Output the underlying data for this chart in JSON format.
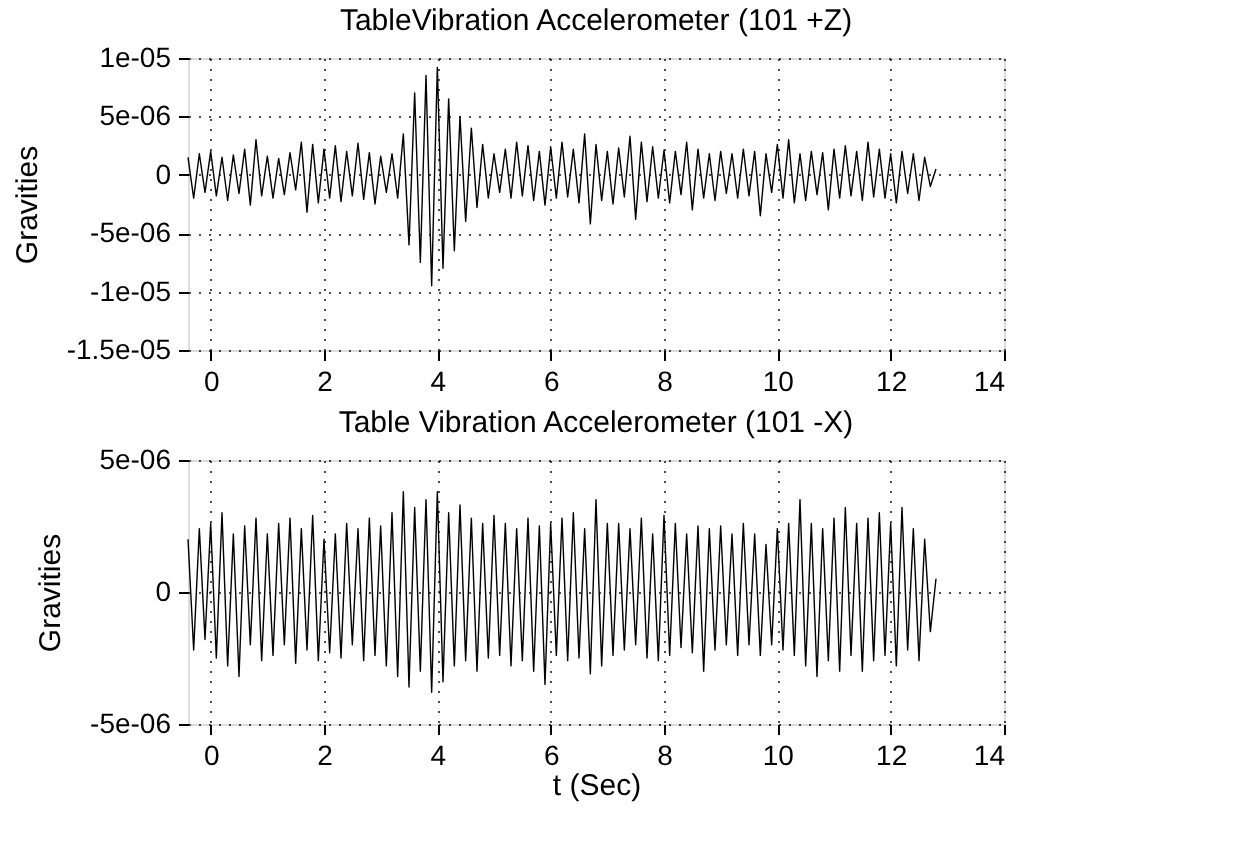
{
  "chart_data": [
    {
      "type": "line",
      "title": "TableVibration Accelerometer (101 +Z)",
      "ylabel": "Gravities",
      "color": "#000000",
      "grid": true,
      "xlim": [
        -0.4,
        14
      ],
      "xticks": [
        0,
        2,
        4,
        6,
        8,
        10,
        12,
        14
      ],
      "ylim": [
        -1.5e-05,
        1e-05
      ],
      "yticks": [
        {
          "value": -1.5e-05,
          "label": "-1.5e-05"
        },
        {
          "value": -1e-05,
          "label": "-1e-05"
        },
        {
          "value": -5e-06,
          "label": "-5e-06"
        },
        0,
        {
          "value": 5e-06,
          "label": "5e-06"
        },
        {
          "value": 1e-05,
          "label": "1e-05"
        }
      ],
      "x": [
        -0.4,
        -0.3,
        -0.2,
        -0.1,
        0.0,
        0.1,
        0.2,
        0.3,
        0.4,
        0.5,
        0.6,
        0.7,
        0.8,
        0.9,
        1.0,
        1.1,
        1.2,
        1.3,
        1.4,
        1.5,
        1.6,
        1.7,
        1.8,
        1.9,
        2.0,
        2.1,
        2.2,
        2.3,
        2.4,
        2.5,
        2.6,
        2.7,
        2.8,
        2.9,
        3.0,
        3.1,
        3.2,
        3.3,
        3.4,
        3.5,
        3.6,
        3.7,
        3.8,
        3.9,
        4.0,
        4.1,
        4.2,
        4.3,
        4.4,
        4.5,
        4.6,
        4.7,
        4.8,
        4.9,
        5.0,
        5.1,
        5.2,
        5.3,
        5.4,
        5.5,
        5.6,
        5.7,
        5.8,
        5.9,
        6.0,
        6.1,
        6.2,
        6.3,
        6.4,
        6.5,
        6.6,
        6.7,
        6.8,
        6.9,
        7.0,
        7.1,
        7.2,
        7.3,
        7.4,
        7.5,
        7.6,
        7.7,
        7.8,
        7.9,
        8.0,
        8.1,
        8.2,
        8.3,
        8.4,
        8.5,
        8.6,
        8.7,
        8.8,
        8.9,
        9.0,
        9.1,
        9.2,
        9.3,
        9.4,
        9.5,
        9.6,
        9.7,
        9.8,
        9.9,
        10.0,
        10.1,
        10.2,
        10.3,
        10.4,
        10.5,
        10.6,
        10.7,
        10.8,
        10.9,
        11.0,
        11.1,
        11.2,
        11.3,
        11.4,
        11.5,
        11.6,
        11.7,
        11.8,
        11.9,
        12.0,
        12.1,
        12.2,
        12.3,
        12.4,
        12.5,
        12.6,
        12.7,
        12.8
      ],
      "values": [
        1.5e-06,
        -2e-06,
        1.8e-06,
        -1.5e-06,
        2e-06,
        -1.8e-06,
        1.5e-06,
        -2.2e-06,
        1.7e-06,
        -1.6e-06,
        2.2e-06,
        -2.6e-06,
        3e-06,
        -1.8e-06,
        1.6e-06,
        -2e-06,
        1.4e-06,
        -1.7e-06,
        1.9e-06,
        -1.3e-06,
        2.8e-06,
        -3.2e-06,
        2.6e-06,
        -2.4e-06,
        2.2e-06,
        -2e-06,
        2.5e-06,
        -2.3e-06,
        2e-06,
        -1.8e-06,
        2.7e-06,
        -2.1e-06,
        1.9e-06,
        -2.5e-06,
        1.6e-06,
        -1.5e-06,
        1.8e-06,
        -2e-06,
        3.5e-06,
        -6e-06,
        7e-06,
        -7.5e-06,
        8.5e-06,
        -9.5e-06,
        9.2e-06,
        -8e-06,
        6.5e-06,
        -6.5e-06,
        5e-06,
        -4e-06,
        4e-06,
        -2.8e-06,
        2.6e-06,
        -2e-06,
        1.8e-06,
        -1.5e-06,
        2.2e-06,
        -2e-06,
        2.8e-06,
        -1.8e-06,
        2.5e-06,
        -2.2e-06,
        2e-06,
        -2.6e-06,
        2.4e-06,
        -2e-06,
        2.8e-06,
        -1.9e-06,
        2.2e-06,
        -2.4e-06,
        3.5e-06,
        -4.2e-06,
        2.6e-06,
        -2.2e-06,
        2e-06,
        -2.5e-06,
        2.3e-06,
        -1.9e-06,
        3.3e-06,
        -3.8e-06,
        2.8e-06,
        -2.3e-06,
        2.4e-06,
        -2e-06,
        2.1e-06,
        -2.4e-06,
        2e-06,
        -1.7e-06,
        2.8e-06,
        -3e-06,
        2.2e-06,
        -2e-06,
        1.8e-06,
        -2.2e-06,
        2e-06,
        -1.6e-06,
        1.8e-06,
        -2e-06,
        2.2e-06,
        -1.8e-06,
        2e-06,
        -3.5e-06,
        1.8e-06,
        -1.5e-06,
        2.6e-06,
        -2e-06,
        3e-06,
        -2.4e-06,
        1.8e-06,
        -2.2e-06,
        2e-06,
        -1.7e-06,
        1.9e-06,
        -3e-06,
        2.2e-06,
        -2e-06,
        2.5e-06,
        -1.8e-06,
        2e-06,
        -2.2e-06,
        2.8e-06,
        -1.9e-06,
        2.2e-06,
        -2e-06,
        1.8e-06,
        -2.4e-06,
        2e-06,
        -1.6e-06,
        1.8e-06,
        -2.2e-06,
        1.5e-06,
        -1e-06,
        5e-07
      ]
    },
    {
      "type": "line",
      "title": "Table Vibration Accelerometer (101 -X)",
      "ylabel": "Gravities",
      "xlabel": "t (Sec)",
      "color": "#000000",
      "grid": true,
      "xlim": [
        -0.4,
        14
      ],
      "xticks": [
        0,
        2,
        4,
        6,
        8,
        10,
        12,
        14
      ],
      "ylim": [
        -5e-06,
        5e-06
      ],
      "yticks": [
        {
          "value": -5e-06,
          "label": "-5e-06"
        },
        0,
        {
          "value": 5e-06,
          "label": "5e-06"
        }
      ],
      "x": [
        -0.4,
        -0.3,
        -0.2,
        -0.1,
        0.0,
        0.1,
        0.2,
        0.3,
        0.4,
        0.5,
        0.6,
        0.7,
        0.8,
        0.9,
        1.0,
        1.1,
        1.2,
        1.3,
        1.4,
        1.5,
        1.6,
        1.7,
        1.8,
        1.9,
        2.0,
        2.1,
        2.2,
        2.3,
        2.4,
        2.5,
        2.6,
        2.7,
        2.8,
        2.9,
        3.0,
        3.1,
        3.2,
        3.3,
        3.4,
        3.5,
        3.6,
        3.7,
        3.8,
        3.9,
        4.0,
        4.1,
        4.2,
        4.3,
        4.4,
        4.5,
        4.6,
        4.7,
        4.8,
        4.9,
        5.0,
        5.1,
        5.2,
        5.3,
        5.4,
        5.5,
        5.6,
        5.7,
        5.8,
        5.9,
        6.0,
        6.1,
        6.2,
        6.3,
        6.4,
        6.5,
        6.6,
        6.7,
        6.8,
        6.9,
        7.0,
        7.1,
        7.2,
        7.3,
        7.4,
        7.5,
        7.6,
        7.7,
        7.8,
        7.9,
        8.0,
        8.1,
        8.2,
        8.3,
        8.4,
        8.5,
        8.6,
        8.7,
        8.8,
        8.9,
        9.0,
        9.1,
        9.2,
        9.3,
        9.4,
        9.5,
        9.6,
        9.7,
        9.8,
        9.9,
        10.0,
        10.1,
        10.2,
        10.3,
        10.4,
        10.5,
        10.6,
        10.7,
        10.8,
        10.9,
        11.0,
        11.1,
        11.2,
        11.3,
        11.4,
        11.5,
        11.6,
        11.7,
        11.8,
        11.9,
        12.0,
        12.1,
        12.2,
        12.3,
        12.4,
        12.5,
        12.6,
        12.7,
        12.8
      ],
      "values": [
        2e-06,
        -2.2e-06,
        2.4e-06,
        -1.8e-06,
        2.6e-06,
        -2.5e-06,
        3e-06,
        -2.8e-06,
        2.2e-06,
        -3.2e-06,
        2.5e-06,
        -2e-06,
        2.8e-06,
        -2.6e-06,
        2.2e-06,
        -2.4e-06,
        2.6e-06,
        -2e-06,
        2.8e-06,
        -2.7e-06,
        2.4e-06,
        -2.2e-06,
        2.9e-06,
        -2.6e-06,
        2e-06,
        -2.3e-06,
        2.2e-06,
        -2.5e-06,
        2.6e-06,
        -2e-06,
        2.4e-06,
        -2.6e-06,
        2.8e-06,
        -2.4e-06,
        2.5e-06,
        -2.8e-06,
        3e-06,
        -3.2e-06,
        3.8e-06,
        -3.6e-06,
        3.2e-06,
        -3e-06,
        3.5e-06,
        -3.8e-06,
        3.8e-06,
        -3.4e-06,
        3e-06,
        -2.8e-06,
        3.3e-06,
        -2.6e-06,
        2.8e-06,
        -3e-06,
        2.6e-06,
        -2.5e-06,
        2.9e-06,
        -2.4e-06,
        2.6e-06,
        -2.8e-06,
        2.4e-06,
        -2.6e-06,
        2.8e-06,
        -3e-06,
        2.5e-06,
        -3.5e-06,
        2.6e-06,
        -2.4e-06,
        2.8e-06,
        -2.6e-06,
        3e-06,
        -2.5e-06,
        2.4e-06,
        -3.1e-06,
        3.5e-06,
        -2.8e-06,
        2.6e-06,
        -2.4e-06,
        2.6e-06,
        -2.2e-06,
        2.4e-06,
        -2e-06,
        2.8e-06,
        -2.5e-06,
        2.2e-06,
        -2.6e-06,
        2.9e-06,
        -2.4e-06,
        2.6e-06,
        -2.1e-06,
        2.2e-06,
        -2.3e-06,
        2.5e-06,
        -3e-06,
        2.4e-06,
        -2.2e-06,
        2.5e-06,
        -2e-06,
        2.2e-06,
        -2.4e-06,
        2.6e-06,
        -2e-06,
        2.2e-06,
        -2.4e-06,
        1.8e-06,
        -2e-06,
        2.4e-06,
        -2.2e-06,
        2.6e-06,
        -2.4e-06,
        3.5e-06,
        -2.8e-06,
        2.6e-06,
        -3.2e-06,
        2.4e-06,
        -2.6e-06,
        2.8e-06,
        -3e-06,
        3.2e-06,
        -2.4e-06,
        2.6e-06,
        -3e-06,
        2.8e-06,
        -2.6e-06,
        3e-06,
        -2.4e-06,
        2.6e-06,
        -2.8e-06,
        3.2e-06,
        -2.2e-06,
        2.4e-06,
        -2.6e-06,
        2e-06,
        -1.5e-06,
        5e-07
      ]
    }
  ]
}
